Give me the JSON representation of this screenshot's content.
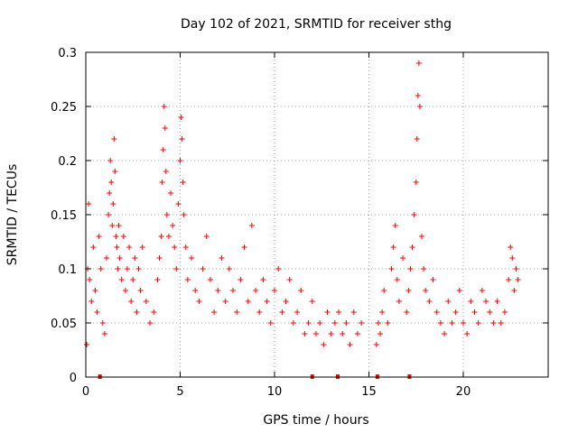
{
  "chart_data": {
    "type": "scatter",
    "title": "Day 102 of 2021, SRMTID for receiver sthg",
    "xlabel": "GPS time / hours",
    "ylabel": "SRMTID / TECUs",
    "xlim": [
      0,
      24.5
    ],
    "ylim": [
      0,
      0.3
    ],
    "xticks": [
      0,
      5,
      10,
      15,
      20
    ],
    "xtick_labels": [
      "0",
      "5",
      "10",
      "15",
      "20"
    ],
    "yticks": [
      0,
      0.05,
      0.1,
      0.15,
      0.2,
      0.25,
      0.3
    ],
    "ytick_labels": [
      "0",
      "0.05",
      "0.1",
      "0.15",
      "0.2",
      "0.25",
      "0.3"
    ],
    "grid": true,
    "marker": "plus",
    "color": "#ff0000",
    "series": [
      {
        "name": "SRMTID",
        "x": [
          0.05,
          0.1,
          0.15,
          0.2,
          0.3,
          0.4,
          0.5,
          0.6,
          0.7,
          0.8,
          0.9,
          1.0,
          1.1,
          1.2,
          1.25,
          1.3,
          1.35,
          1.4,
          1.45,
          1.5,
          1.55,
          1.6,
          1.65,
          1.7,
          1.75,
          1.8,
          1.9,
          2.0,
          2.1,
          2.2,
          2.3,
          2.4,
          2.5,
          2.6,
          2.7,
          2.8,
          2.9,
          3.0,
          3.2,
          3.4,
          3.6,
          3.8,
          3.9,
          4.0,
          4.05,
          4.1,
          4.15,
          4.2,
          4.25,
          4.3,
          4.4,
          4.5,
          4.6,
          4.7,
          4.8,
          4.9,
          5.0,
          5.05,
          5.1,
          5.15,
          5.2,
          5.3,
          5.4,
          5.6,
          5.8,
          6.0,
          6.2,
          6.4,
          6.6,
          6.8,
          7.0,
          7.2,
          7.4,
          7.6,
          7.8,
          8.0,
          8.2,
          8.4,
          8.6,
          8.8,
          9.0,
          9.2,
          9.4,
          9.6,
          9.8,
          10.0,
          10.2,
          10.4,
          10.6,
          10.8,
          11.0,
          11.2,
          11.4,
          11.6,
          11.8,
          12.0,
          12.2,
          12.4,
          12.6,
          12.8,
          13.0,
          13.2,
          13.4,
          13.6,
          13.8,
          14.0,
          14.2,
          14.4,
          14.6,
          15.4,
          15.5,
          15.6,
          15.7,
          15.8,
          16.0,
          16.2,
          16.3,
          16.4,
          16.5,
          16.6,
          16.8,
          17.0,
          17.1,
          17.2,
          17.3,
          17.4,
          17.5,
          17.55,
          17.6,
          17.65,
          17.7,
          17.8,
          17.9,
          18.0,
          18.2,
          18.4,
          18.6,
          18.8,
          19.0,
          19.2,
          19.4,
          19.6,
          19.8,
          20.0,
          20.2,
          20.4,
          20.6,
          20.8,
          21.0,
          21.2,
          21.4,
          21.6,
          21.8,
          22.0,
          22.2,
          22.4,
          22.5,
          22.6,
          22.7,
          22.8,
          22.9
        ],
        "y": [
          0.03,
          0.1,
          0.16,
          0.09,
          0.07,
          0.12,
          0.08,
          0.06,
          0.13,
          0.1,
          0.05,
          0.04,
          0.11,
          0.15,
          0.17,
          0.2,
          0.18,
          0.14,
          0.16,
          0.22,
          0.19,
          0.13,
          0.12,
          0.1,
          0.14,
          0.11,
          0.09,
          0.13,
          0.08,
          0.1,
          0.12,
          0.07,
          0.09,
          0.11,
          0.06,
          0.1,
          0.08,
          0.12,
          0.07,
          0.05,
          0.06,
          0.09,
          0.11,
          0.13,
          0.18,
          0.21,
          0.25,
          0.23,
          0.19,
          0.15,
          0.13,
          0.17,
          0.14,
          0.12,
          0.1,
          0.16,
          0.2,
          0.24,
          0.22,
          0.18,
          0.15,
          0.12,
          0.09,
          0.11,
          0.08,
          0.07,
          0.1,
          0.13,
          0.09,
          0.06,
          0.08,
          0.11,
          0.07,
          0.1,
          0.08,
          0.06,
          0.09,
          0.12,
          0.07,
          0.14,
          0.08,
          0.06,
          0.09,
          0.07,
          0.05,
          0.08,
          0.1,
          0.06,
          0.07,
          0.09,
          0.05,
          0.06,
          0.08,
          0.04,
          0.05,
          0.07,
          0.04,
          0.05,
          0.03,
          0.06,
          0.04,
          0.05,
          0.06,
          0.04,
          0.05,
          0.03,
          0.06,
          0.04,
          0.05,
          0.03,
          0.05,
          0.04,
          0.06,
          0.08,
          0.05,
          0.1,
          0.12,
          0.14,
          0.09,
          0.07,
          0.11,
          0.06,
          0.08,
          0.1,
          0.12,
          0.15,
          0.18,
          0.22,
          0.26,
          0.29,
          0.25,
          0.13,
          0.1,
          0.08,
          0.07,
          0.09,
          0.06,
          0.05,
          0.04,
          0.07,
          0.05,
          0.06,
          0.08,
          0.05,
          0.04,
          0.07,
          0.06,
          0.05,
          0.08,
          0.07,
          0.06,
          0.05,
          0.07,
          0.05,
          0.06,
          0.09,
          0.12,
          0.11,
          0.08,
          0.1,
          0.09
        ]
      }
    ],
    "gap_markers_x": [
      0.75,
      12.0,
      13.35,
      15.45,
      17.15
    ]
  }
}
